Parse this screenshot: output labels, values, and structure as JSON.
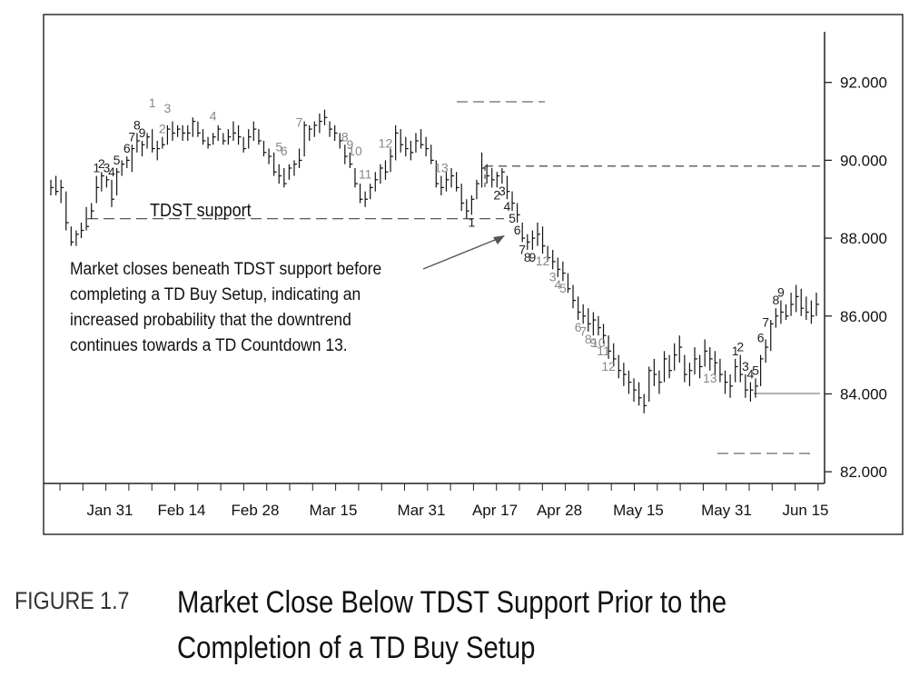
{
  "figure": {
    "label": "FIGURE 1.7",
    "title_line1": "Market Close Below TDST Support Prior to the",
    "title_line2": "Completion of a TD Buy Setup"
  },
  "chart_data": {
    "type": "bar",
    "y_ticks": [
      "82.000",
      "84.000",
      "86.000",
      "88.000",
      "90.000",
      "92.000"
    ],
    "ylim": [
      81.7,
      93.3
    ],
    "x_ticks": [
      "Jan 31",
      "Feb 14",
      "Feb 28",
      "Mar 15",
      "Mar 31",
      "Apr 17",
      "Apr 28",
      "May 15",
      "May 31",
      "Jun 15"
    ],
    "support_label": "TDST support",
    "support_level": 88.5,
    "resistance_level": 89.85,
    "annotation_lines": [
      "Market closes beneath TDST support before",
      "completing a TD Buy Setup, indicating an",
      "increased probability that the downtrend",
      "continues towards a TD Countdown 13."
    ],
    "ohlc": [
      [
        89.5,
        89.1,
        89.3
      ],
      [
        89.6,
        89.1,
        89.2
      ],
      [
        89.5,
        88.9,
        89.3
      ],
      [
        89.2,
        88.2,
        88.4
      ],
      [
        88.3,
        87.8,
        87.9
      ],
      [
        88.2,
        87.8,
        88.1
      ],
      [
        88.4,
        88.0,
        88.2
      ],
      [
        88.8,
        88.2,
        88.3
      ],
      [
        88.9,
        88.5,
        88.7
      ],
      [
        89.6,
        88.9,
        89.3
      ],
      [
        89.7,
        89.2,
        89.6
      ],
      [
        89.6,
        89.3,
        89.5
      ],
      [
        89.5,
        88.8,
        89.0
      ],
      [
        89.8,
        89.1,
        89.7
      ],
      [
        90.0,
        89.6,
        89.9
      ],
      [
        90.1,
        89.8,
        90.0
      ],
      [
        90.4,
        89.7,
        90.3
      ],
      [
        90.7,
        90.2,
        90.5
      ],
      [
        90.5,
        90.1,
        90.4
      ],
      [
        90.7,
        90.3,
        90.6
      ],
      [
        90.8,
        90.2,
        90.3
      ],
      [
        90.5,
        90.0,
        90.3
      ],
      [
        90.6,
        90.3,
        90.4
      ],
      [
        90.9,
        90.4,
        90.8
      ],
      [
        91.0,
        90.5,
        90.7
      ],
      [
        90.9,
        90.6,
        90.8
      ],
      [
        90.9,
        90.5,
        90.7
      ],
      [
        90.9,
        90.5,
        90.7
      ],
      [
        91.1,
        90.6,
        91.0
      ],
      [
        91.0,
        90.6,
        90.7
      ],
      [
        90.8,
        90.4,
        90.5
      ],
      [
        90.6,
        90.3,
        90.4
      ],
      [
        90.7,
        90.4,
        90.6
      ],
      [
        90.9,
        90.5,
        90.8
      ],
      [
        90.7,
        90.4,
        90.5
      ],
      [
        90.8,
        90.4,
        90.6
      ],
      [
        91.0,
        90.5,
        90.7
      ],
      [
        90.9,
        90.4,
        90.6
      ],
      [
        90.6,
        90.2,
        90.3
      ],
      [
        90.8,
        90.3,
        90.6
      ],
      [
        91.0,
        90.5,
        90.8
      ],
      [
        90.8,
        90.4,
        90.5
      ],
      [
        90.5,
        90.1,
        90.2
      ],
      [
        90.3,
        89.9,
        90.1
      ],
      [
        90.2,
        89.6,
        89.7
      ],
      [
        89.9,
        89.4,
        89.6
      ],
      [
        89.8,
        89.3,
        89.4
      ],
      [
        89.9,
        89.5,
        89.8
      ],
      [
        90.0,
        89.6,
        89.9
      ],
      [
        90.3,
        89.8,
        90.0
      ],
      [
        91.0,
        90.1,
        90.9
      ],
      [
        90.9,
        90.5,
        90.8
      ],
      [
        91.0,
        90.6,
        90.9
      ],
      [
        91.2,
        90.7,
        91.0
      ],
      [
        91.3,
        90.9,
        91.1
      ],
      [
        91.0,
        90.6,
        90.8
      ],
      [
        90.9,
        90.5,
        90.7
      ],
      [
        90.7,
        90.3,
        90.5
      ],
      [
        90.4,
        89.9,
        90.1
      ],
      [
        90.2,
        89.8,
        89.9
      ],
      [
        89.8,
        89.3,
        89.4
      ],
      [
        89.4,
        88.9,
        89.0
      ],
      [
        89.2,
        88.8,
        89.0
      ],
      [
        89.4,
        89.0,
        89.3
      ],
      [
        89.7,
        89.2,
        89.5
      ],
      [
        89.9,
        89.4,
        89.8
      ],
      [
        90.0,
        89.5,
        89.7
      ],
      [
        90.3,
        89.7,
        90.1
      ],
      [
        90.9,
        90.0,
        90.7
      ],
      [
        90.8,
        90.2,
        90.4
      ],
      [
        90.6,
        90.1,
        90.3
      ],
      [
        90.5,
        90.0,
        90.2
      ],
      [
        90.7,
        90.2,
        90.5
      ],
      [
        90.8,
        90.3,
        90.4
      ],
      [
        90.6,
        90.1,
        90.3
      ],
      [
        90.4,
        89.9,
        90.0
      ],
      [
        90.0,
        89.3,
        89.4
      ],
      [
        89.6,
        89.1,
        89.3
      ],
      [
        89.7,
        89.2,
        89.5
      ],
      [
        89.8,
        89.3,
        89.6
      ],
      [
        89.7,
        89.2,
        89.3
      ],
      [
        89.4,
        88.7,
        88.9
      ],
      [
        89.0,
        88.5,
        88.7
      ],
      [
        89.1,
        88.6,
        89.0
      ],
      [
        89.5,
        89.0,
        89.4
      ],
      [
        90.2,
        89.3,
        89.8
      ],
      [
        89.9,
        89.4,
        89.6
      ],
      [
        89.8,
        89.3,
        89.5
      ],
      [
        89.7,
        89.3,
        89.6
      ],
      [
        89.8,
        89.4,
        89.7
      ],
      [
        89.6,
        89.0,
        89.2
      ],
      [
        89.2,
        88.7,
        88.9
      ],
      [
        88.9,
        88.4,
        88.6
      ],
      [
        88.4,
        87.9,
        88.0
      ],
      [
        88.1,
        87.7,
        87.9
      ],
      [
        88.2,
        87.7,
        88.0
      ],
      [
        88.4,
        87.8,
        88.1
      ],
      [
        88.3,
        87.6,
        87.8
      ],
      [
        87.8,
        87.4,
        87.5
      ],
      [
        87.7,
        87.2,
        87.4
      ],
      [
        87.5,
        87.0,
        87.2
      ],
      [
        87.4,
        86.9,
        87.1
      ],
      [
        87.1,
        86.6,
        86.7
      ],
      [
        86.8,
        86.2,
        86.4
      ],
      [
        86.5,
        85.9,
        86.1
      ],
      [
        86.3,
        85.8,
        86.0
      ],
      [
        86.2,
        85.6,
        85.8
      ],
      [
        86.1,
        85.5,
        85.9
      ],
      [
        86.0,
        85.5,
        85.7
      ],
      [
        85.8,
        85.3,
        85.5
      ],
      [
        85.5,
        84.9,
        85.1
      ],
      [
        85.3,
        84.7,
        84.9
      ],
      [
        85.0,
        84.4,
        84.6
      ],
      [
        84.8,
        84.2,
        84.5
      ],
      [
        84.6,
        84.0,
        84.3
      ],
      [
        84.4,
        83.8,
        84.1
      ],
      [
        84.3,
        83.7,
        83.9
      ],
      [
        84.0,
        83.5,
        83.7
      ],
      [
        84.7,
        83.8,
        84.6
      ],
      [
        84.9,
        84.2,
        84.5
      ],
      [
        84.6,
        84.0,
        84.3
      ],
      [
        85.1,
        84.3,
        84.9
      ],
      [
        85.0,
        84.4,
        84.6
      ],
      [
        85.3,
        84.6,
        85.0
      ],
      [
        85.5,
        84.8,
        85.2
      ],
      [
        85.0,
        84.3,
        84.5
      ],
      [
        84.8,
        84.2,
        84.6
      ],
      [
        85.2,
        84.5,
        84.9
      ],
      [
        85.0,
        84.4,
        84.7
      ],
      [
        85.4,
        84.7,
        85.1
      ],
      [
        85.2,
        84.6,
        84.9
      ],
      [
        85.1,
        84.5,
        84.8
      ],
      [
        84.9,
        84.3,
        84.5
      ],
      [
        84.6,
        84.0,
        84.3
      ],
      [
        84.5,
        83.9,
        84.2
      ],
      [
        84.9,
        84.3,
        84.7
      ],
      [
        85.0,
        84.3,
        84.5
      ],
      [
        84.5,
        83.9,
        84.1
      ],
      [
        84.3,
        83.8,
        84.1
      ],
      [
        84.4,
        83.9,
        84.2
      ],
      [
        85.0,
        84.2,
        84.9
      ],
      [
        85.4,
        84.8,
        85.2
      ],
      [
        85.9,
        85.1,
        85.8
      ],
      [
        86.2,
        85.7,
        86.0
      ],
      [
        86.4,
        85.8,
        86.1
      ],
      [
        86.3,
        85.9,
        86.0
      ],
      [
        86.6,
        86.0,
        86.3
      ],
      [
        86.8,
        86.1,
        86.5
      ],
      [
        86.7,
        86.0,
        86.2
      ],
      [
        86.5,
        85.9,
        86.1
      ],
      [
        86.4,
        85.8,
        86.0
      ],
      [
        86.6,
        86.0,
        86.3
      ]
    ],
    "setup_labels": [
      {
        "t": "1",
        "i": 9,
        "dy": -1,
        "c": "#222"
      },
      {
        "t": "2",
        "i": 10,
        "dy": -1,
        "c": "#222"
      },
      {
        "t": "3",
        "i": 11,
        "dy": -1,
        "c": "#222"
      },
      {
        "t": "4",
        "i": 12,
        "dy": -1,
        "c": "#222"
      },
      {
        "t": "5",
        "i": 13,
        "dy": -1,
        "c": "#222"
      },
      {
        "t": "6",
        "i": 15,
        "dy": -1,
        "c": "#222"
      },
      {
        "t": "7",
        "i": 16,
        "dy": -1,
        "c": "#222"
      },
      {
        "t": "8",
        "i": 17,
        "dy": -1,
        "c": "#222"
      },
      {
        "t": "9",
        "i": 18,
        "dy": -1,
        "c": "#222"
      },
      {
        "t": "1",
        "i": 20,
        "dy": -3,
        "c": "#888"
      },
      {
        "t": "2",
        "i": 22,
        "dy": -1,
        "c": "#888"
      },
      {
        "t": "3",
        "i": 23,
        "dy": -2,
        "c": "#888"
      },
      {
        "t": "4",
        "i": 32,
        "dy": -2,
        "c": "#888"
      },
      {
        "t": "5",
        "i": 45,
        "dy": -2,
        "c": "#888"
      },
      {
        "t": "6",
        "i": 46,
        "dy": -2,
        "c": "#888"
      },
      {
        "t": "7",
        "i": 49,
        "dy": -3,
        "c": "#888"
      },
      {
        "t": "8",
        "i": 58,
        "dy": -1,
        "c": "#888"
      },
      {
        "t": "9",
        "i": 59,
        "dy": -1,
        "c": "#888"
      },
      {
        "t": "10",
        "i": 60,
        "dy": -2,
        "c": "#888"
      },
      {
        "t": "11",
        "i": 62,
        "dy": -2,
        "c": "#888"
      },
      {
        "t": "12",
        "i": 66,
        "dy": -2,
        "c": "#888"
      },
      {
        "t": "13",
        "i": 77,
        "dy": -1,
        "c": "#888"
      },
      {
        "t": "1",
        "i": 83,
        "dy": 1,
        "c": "#222"
      },
      {
        "t": "2",
        "i": 88,
        "dy": 1,
        "c": "#222"
      },
      {
        "t": "3",
        "i": 89,
        "dy": 1,
        "c": "#222"
      },
      {
        "t": "4",
        "i": 90,
        "dy": 1,
        "c": "#222"
      },
      {
        "t": "5",
        "i": 91,
        "dy": 1,
        "c": "#222"
      },
      {
        "t": "6",
        "i": 92,
        "dy": 1,
        "c": "#222"
      },
      {
        "t": "7",
        "i": 93,
        "dy": 1,
        "c": "#222"
      },
      {
        "t": "8",
        "i": 94,
        "dy": 1,
        "c": "#222"
      },
      {
        "t": "9",
        "i": 95,
        "dy": 1,
        "c": "#222"
      },
      {
        "t": "12",
        "i": 97,
        "dy": 1,
        "c": "#888"
      },
      {
        "t": "3",
        "i": 99,
        "dy": 1,
        "c": "#888"
      },
      {
        "t": "4",
        "i": 100,
        "dy": 1,
        "c": "#888"
      },
      {
        "t": "5",
        "i": 101,
        "dy": 1,
        "c": "#888"
      },
      {
        "t": "6",
        "i": 104,
        "dy": 1,
        "c": "#888"
      },
      {
        "t": "7",
        "i": 105,
        "dy": 1,
        "c": "#888"
      },
      {
        "t": "8",
        "i": 106,
        "dy": 1,
        "c": "#888"
      },
      {
        "t": "9",
        "i": 107,
        "dy": 1,
        "c": "#888"
      },
      {
        "t": "10",
        "i": 108,
        "dy": 1,
        "c": "#888"
      },
      {
        "t": "11",
        "i": 109,
        "dy": 1,
        "c": "#888"
      },
      {
        "t": "12",
        "i": 110,
        "dy": 1,
        "c": "#888"
      },
      {
        "t": "13",
        "i": 130,
        "dy": 1,
        "c": "#888"
      },
      {
        "t": "1",
        "i": 135,
        "dy": -1,
        "c": "#222"
      },
      {
        "t": "2",
        "i": 136,
        "dy": -1,
        "c": "#222"
      },
      {
        "t": "3",
        "i": 137,
        "dy": -1,
        "c": "#222"
      },
      {
        "t": "4",
        "i": 138,
        "dy": -1,
        "c": "#222"
      },
      {
        "t": "5",
        "i": 139,
        "dy": -1,
        "c": "#222"
      },
      {
        "t": "6",
        "i": 140,
        "dy": -2,
        "c": "#222"
      },
      {
        "t": "7",
        "i": 141,
        "dy": -2,
        "c": "#222"
      },
      {
        "t": "8",
        "i": 143,
        "dy": -1,
        "c": "#222"
      },
      {
        "t": "9",
        "i": 144,
        "dy": -1,
        "c": "#222"
      }
    ]
  }
}
